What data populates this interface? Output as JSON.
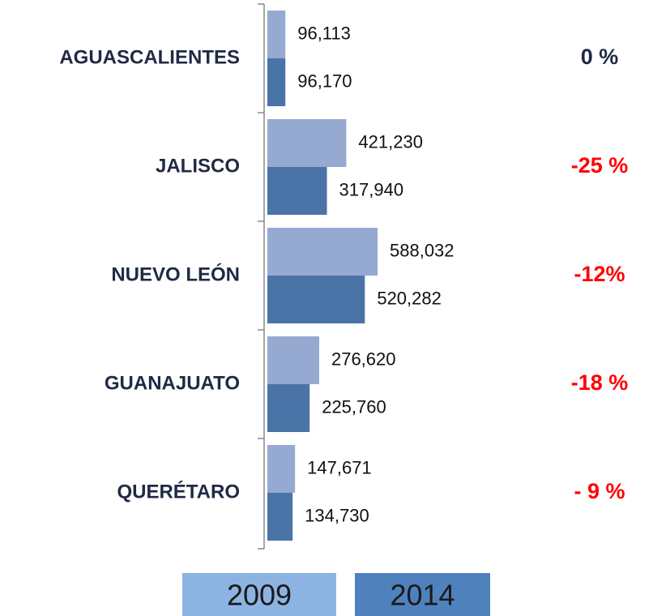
{
  "chart_data": {
    "type": "bar",
    "orientation": "horizontal",
    "categories": [
      "AGUASCALIENTES",
      "JALISCO",
      "NUEVO LEÓN",
      "GUANAJUATO",
      "QUERÉTARO"
    ],
    "series": [
      {
        "name": "2009",
        "color": "#95a9d1",
        "values": [
          96113,
          421230,
          588032,
          276620,
          147671
        ],
        "value_labels": [
          "96,113",
          "421,230",
          "588,032",
          "276,620",
          "147,671"
        ]
      },
      {
        "name": "2014",
        "color": "#4a74a8",
        "values": [
          96170,
          317940,
          520282,
          225760,
          134730
        ],
        "value_labels": [
          "96,170",
          "317,940",
          "520,282",
          "225,760",
          "134,730"
        ]
      }
    ],
    "annotations": [
      "0 %",
      "-25 %",
      "-12%",
      "-18 %",
      "- 9 %"
    ],
    "annotation_colors": [
      "#1f2a44",
      "#ff0000",
      "#ff0000",
      "#ff0000",
      "#ff0000"
    ],
    "legend_colors": [
      "#8db3e2",
      "#4f81bd"
    ]
  }
}
